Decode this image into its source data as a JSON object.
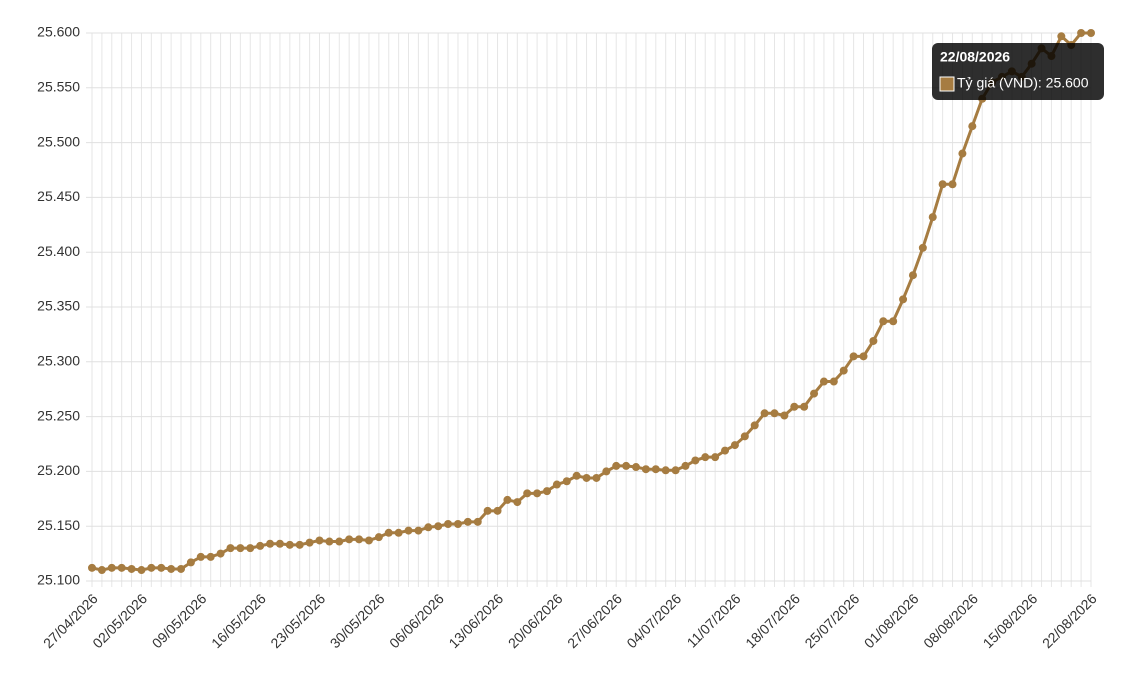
{
  "chart_data": {
    "type": "line",
    "categories": [
      "27/04/2026",
      null,
      null,
      null,
      null,
      "02/05/2026",
      null,
      null,
      null,
      null,
      null,
      "09/05/2026",
      null,
      null,
      null,
      null,
      null,
      "16/05/2026",
      null,
      null,
      null,
      null,
      null,
      "23/05/2026",
      null,
      null,
      null,
      null,
      null,
      "30/05/2026",
      null,
      null,
      null,
      null,
      null,
      "06/06/2026",
      null,
      null,
      null,
      null,
      null,
      "13/06/2026",
      null,
      null,
      null,
      null,
      null,
      "20/06/2026",
      null,
      null,
      null,
      null,
      null,
      "27/06/2026",
      null,
      null,
      null,
      null,
      null,
      "04/07/2026",
      null,
      null,
      null,
      null,
      null,
      "11/07/2026",
      null,
      null,
      null,
      null,
      null,
      "18/07/2026",
      null,
      null,
      null,
      null,
      null,
      "25/07/2026",
      null,
      null,
      null,
      null,
      null,
      "01/08/2026",
      null,
      null,
      null,
      null,
      null,
      "08/08/2026",
      null,
      null,
      null,
      null,
      null,
      "15/08/2026",
      null,
      null,
      null,
      null,
      null,
      "22/08/2026"
    ],
    "series": [
      {
        "name": "Tỷ giá (VND)",
        "color": "#a67c41",
        "values": [
          25112,
          25110,
          25112,
          25112,
          25111,
          25110,
          25112,
          25112,
          25111,
          25111,
          25117,
          25122,
          25122,
          25125,
          25130,
          25130,
          25130,
          25132,
          25134,
          25134,
          25133,
          25133,
          25135,
          25137,
          25136,
          25136,
          25138,
          25138,
          25137,
          25140,
          25144,
          25144,
          25146,
          25146,
          25149,
          25150,
          25152,
          25152,
          25154,
          25154,
          25164,
          25164,
          25174,
          25172,
          25180,
          25180,
          25182,
          25188,
          25191,
          25196,
          25194,
          25194,
          25200,
          25205,
          25205,
          25204,
          25202,
          25202,
          25201,
          25201,
          25205,
          25210,
          25213,
          25213,
          25219,
          25224,
          25232,
          25242,
          25253,
          25253,
          25251,
          25259,
          25259,
          25271,
          25282,
          25282,
          25292,
          25305,
          25305,
          25319,
          25337,
          25337,
          25357,
          25379,
          25404,
          25432,
          25462,
          25462,
          25490,
          25515,
          25540,
          25555,
          25560,
          25565,
          25560,
          25572,
          25586,
          25579,
          25597,
          25589,
          25600,
          25600
        ]
      }
    ],
    "ylim": [
      25100,
      25600
    ],
    "yticks": [
      {
        "value": 25100,
        "label": "25.100"
      },
      {
        "value": 25150,
        "label": "25.150"
      },
      {
        "value": 25200,
        "label": "25.200"
      },
      {
        "value": 25250,
        "label": "25.250"
      },
      {
        "value": 25300,
        "label": "25.300"
      },
      {
        "value": 25350,
        "label": "25.350"
      },
      {
        "value": 25400,
        "label": "25.400"
      },
      {
        "value": 25450,
        "label": "25.450"
      },
      {
        "value": 25500,
        "label": "25.500"
      },
      {
        "value": 25550,
        "label": "25.550"
      },
      {
        "value": 25600,
        "label": "25.600"
      }
    ],
    "grid": true,
    "tooltip": {
      "title": "22/08/2026",
      "text": "Tỷ giá (VND): 25.600"
    }
  }
}
